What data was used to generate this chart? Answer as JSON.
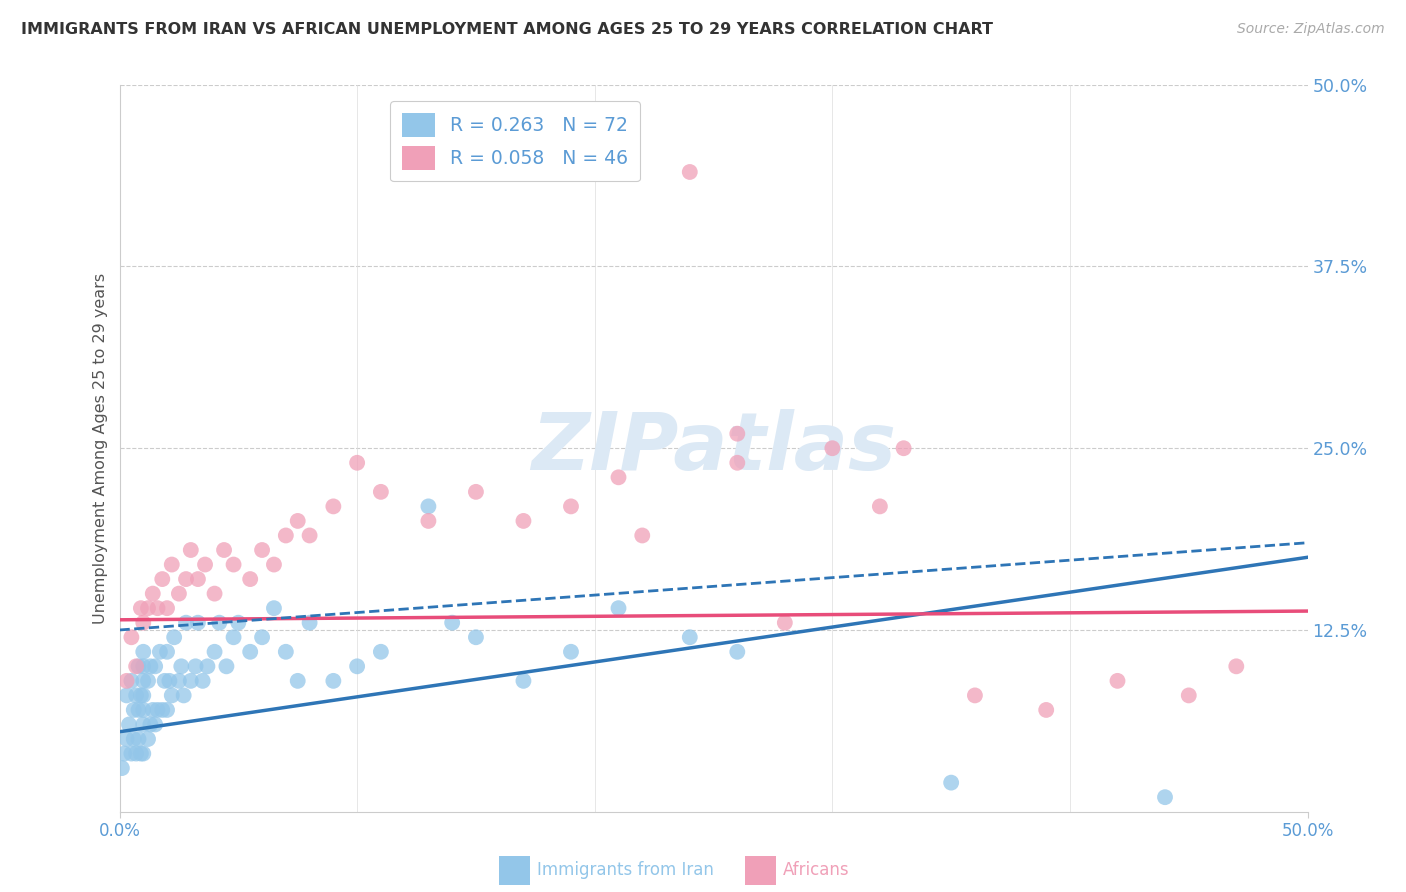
{
  "title": "IMMIGRANTS FROM IRAN VS AFRICAN UNEMPLOYMENT AMONG AGES 25 TO 29 YEARS CORRELATION CHART",
  "source": "Source: ZipAtlas.com",
  "ylabel": "Unemployment Among Ages 25 to 29 years",
  "color_iran": "#93c6e9",
  "color_african": "#f0a0b8",
  "line_iran": "#2e75b6",
  "line_african": "#e84d7a",
  "line_dashed": "#2e75b6",
  "watermark_color": "#dce9f5",
  "xlim": [
    0.0,
    0.5
  ],
  "ylim": [
    0.0,
    0.5
  ],
  "iran_R": 0.263,
  "iran_N": 72,
  "african_R": 0.058,
  "african_N": 46,
  "iran_scatter_x": [
    0.001,
    0.002,
    0.003,
    0.003,
    0.004,
    0.005,
    0.005,
    0.006,
    0.006,
    0.007,
    0.007,
    0.008,
    0.008,
    0.008,
    0.009,
    0.009,
    0.01,
    0.01,
    0.01,
    0.01,
    0.01,
    0.01,
    0.01,
    0.012,
    0.012,
    0.013,
    0.013,
    0.014,
    0.015,
    0.015,
    0.016,
    0.017,
    0.018,
    0.019,
    0.02,
    0.02,
    0.021,
    0.022,
    0.023,
    0.025,
    0.026,
    0.027,
    0.028,
    0.03,
    0.032,
    0.033,
    0.035,
    0.037,
    0.04,
    0.042,
    0.045,
    0.048,
    0.05,
    0.055,
    0.06,
    0.065,
    0.07,
    0.075,
    0.08,
    0.09,
    0.1,
    0.11,
    0.13,
    0.14,
    0.15,
    0.17,
    0.19,
    0.21,
    0.24,
    0.26,
    0.35,
    0.44
  ],
  "iran_scatter_y": [
    0.03,
    0.04,
    0.05,
    0.08,
    0.06,
    0.04,
    0.09,
    0.05,
    0.07,
    0.04,
    0.08,
    0.05,
    0.07,
    0.1,
    0.04,
    0.08,
    0.04,
    0.06,
    0.08,
    0.09,
    0.1,
    0.11,
    0.07,
    0.05,
    0.09,
    0.06,
    0.1,
    0.07,
    0.06,
    0.1,
    0.07,
    0.11,
    0.07,
    0.09,
    0.07,
    0.11,
    0.09,
    0.08,
    0.12,
    0.09,
    0.1,
    0.08,
    0.13,
    0.09,
    0.1,
    0.13,
    0.09,
    0.1,
    0.11,
    0.13,
    0.1,
    0.12,
    0.13,
    0.11,
    0.12,
    0.14,
    0.11,
    0.09,
    0.13,
    0.09,
    0.1,
    0.11,
    0.21,
    0.13,
    0.12,
    0.09,
    0.11,
    0.14,
    0.12,
    0.11,
    0.02,
    0.01
  ],
  "african_scatter_x": [
    0.003,
    0.005,
    0.007,
    0.009,
    0.01,
    0.012,
    0.014,
    0.016,
    0.018,
    0.02,
    0.022,
    0.025,
    0.028,
    0.03,
    0.033,
    0.036,
    0.04,
    0.044,
    0.048,
    0.055,
    0.06,
    0.065,
    0.07,
    0.075,
    0.08,
    0.09,
    0.1,
    0.11,
    0.13,
    0.15,
    0.17,
    0.19,
    0.21,
    0.22,
    0.24,
    0.26,
    0.28,
    0.3,
    0.33,
    0.36,
    0.39,
    0.42,
    0.45,
    0.47,
    0.26,
    0.32
  ],
  "african_scatter_y": [
    0.09,
    0.12,
    0.1,
    0.14,
    0.13,
    0.14,
    0.15,
    0.14,
    0.16,
    0.14,
    0.17,
    0.15,
    0.16,
    0.18,
    0.16,
    0.17,
    0.15,
    0.18,
    0.17,
    0.16,
    0.18,
    0.17,
    0.19,
    0.2,
    0.19,
    0.21,
    0.24,
    0.22,
    0.2,
    0.22,
    0.2,
    0.21,
    0.23,
    0.19,
    0.44,
    0.24,
    0.13,
    0.25,
    0.25,
    0.08,
    0.07,
    0.09,
    0.08,
    0.1,
    0.26,
    0.21
  ],
  "iran_line_x0": 0.0,
  "iran_line_x1": 0.5,
  "iran_line_y0": 0.055,
  "iran_line_y1": 0.175,
  "african_line_x0": 0.0,
  "african_line_x1": 0.5,
  "african_line_y0": 0.132,
  "african_line_y1": 0.138,
  "dashed_line_x0": 0.0,
  "dashed_line_x1": 0.5,
  "dashed_line_y0": 0.125,
  "dashed_line_y1": 0.185
}
